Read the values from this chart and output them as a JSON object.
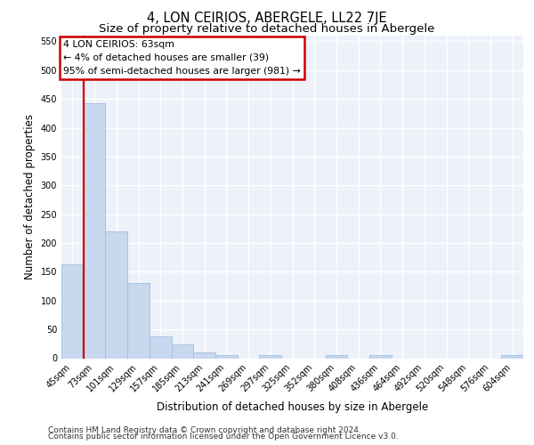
{
  "title": "4, LON CEIRIOS, ABERGELE, LL22 7JE",
  "subtitle": "Size of property relative to detached houses in Abergele",
  "xlabel": "Distribution of detached houses by size in Abergele",
  "ylabel": "Number of detached properties",
  "categories": [
    "45sqm",
    "73sqm",
    "101sqm",
    "129sqm",
    "157sqm",
    "185sqm",
    "213sqm",
    "241sqm",
    "269sqm",
    "297sqm",
    "325sqm",
    "352sqm",
    "380sqm",
    "408sqm",
    "436sqm",
    "464sqm",
    "492sqm",
    "520sqm",
    "548sqm",
    "576sqm",
    "604sqm"
  ],
  "values": [
    163,
    443,
    220,
    130,
    38,
    24,
    10,
    6,
    0,
    5,
    0,
    0,
    5,
    0,
    5,
    0,
    0,
    0,
    0,
    0,
    5
  ],
  "bar_color": "#c8d8ef",
  "bar_edge_color": "#a0bedd",
  "annotation_text": "4 LON CEIRIOS: 63sqm\n← 4% of detached houses are smaller (39)\n95% of semi-detached houses are larger (981) →",
  "annotation_box_color": "#ffffff",
  "annotation_box_edge_color": "#cc0000",
  "ylim": [
    0,
    560
  ],
  "yticks": [
    0,
    50,
    100,
    150,
    200,
    250,
    300,
    350,
    400,
    450,
    500,
    550
  ],
  "vline_color": "#cc0000",
  "footer_line1": "Contains HM Land Registry data © Crown copyright and database right 2024.",
  "footer_line2": "Contains public sector information licensed under the Open Government Licence v3.0.",
  "background_color": "#edf1fa",
  "grid_color": "#ffffff",
  "title_fontsize": 10.5,
  "subtitle_fontsize": 9.5,
  "axis_label_fontsize": 8.5,
  "tick_fontsize": 7,
  "footer_fontsize": 6.5
}
